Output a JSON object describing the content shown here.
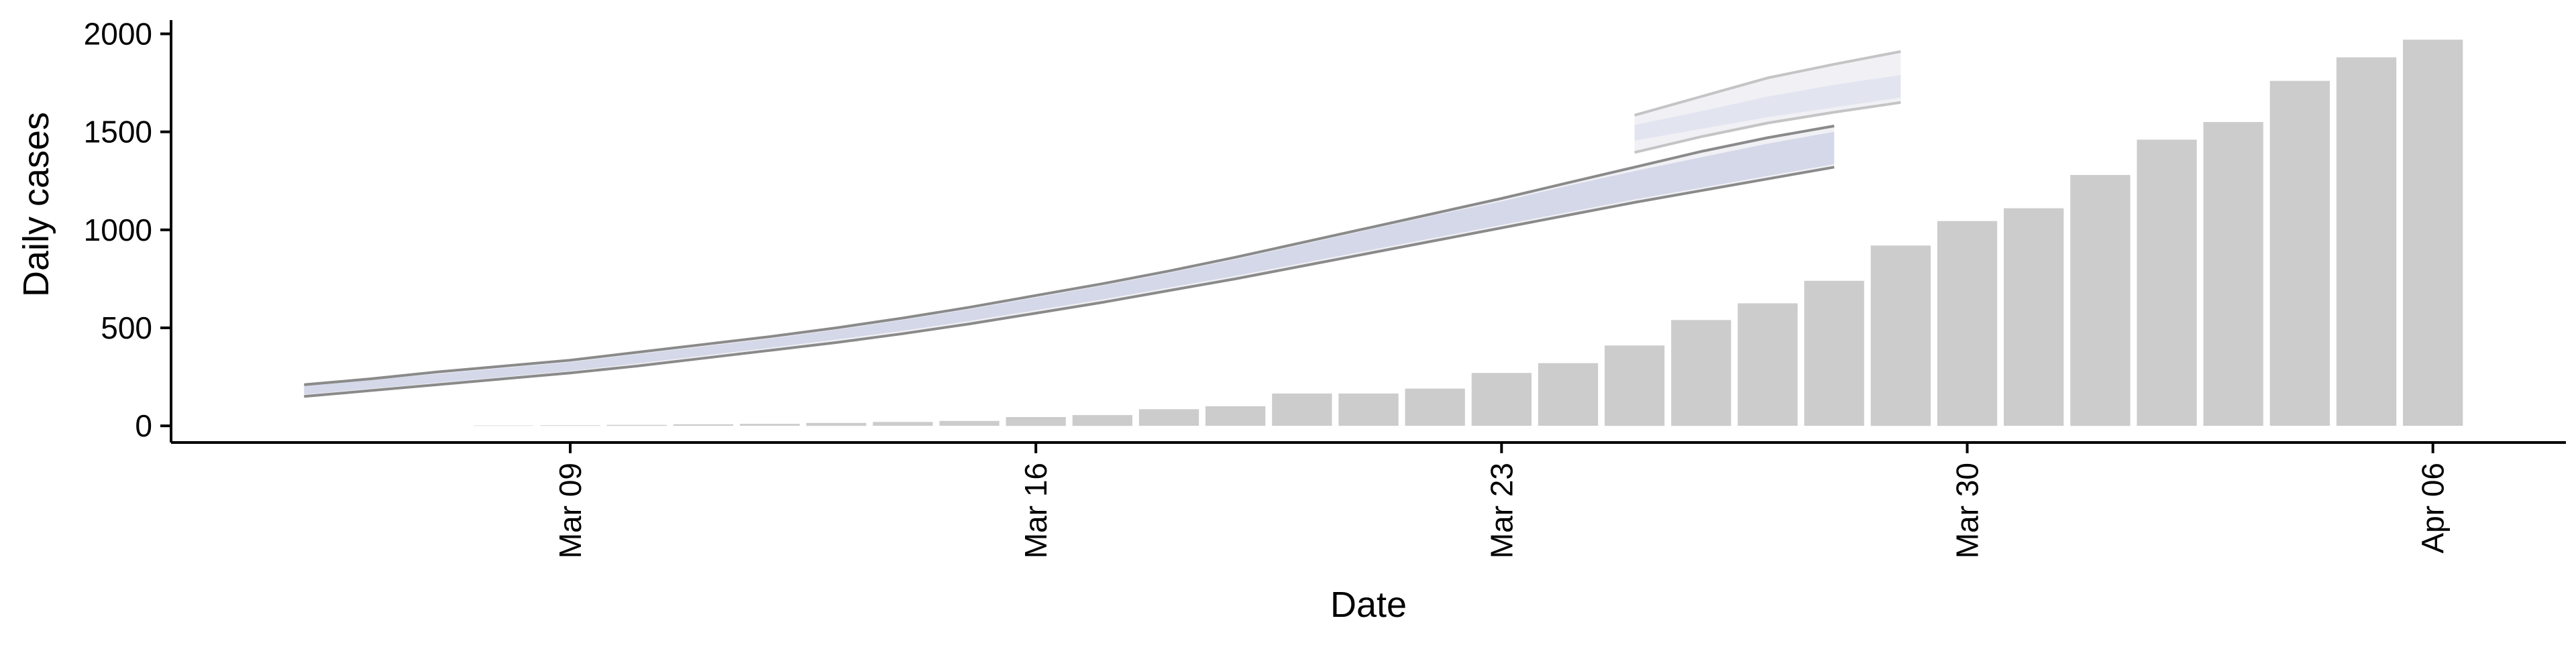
{
  "chart_data": {
    "type": "bar",
    "xlabel": "Date",
    "ylabel": "Daily cases",
    "ylim": [
      -85,
      2070
    ],
    "xlim": [
      "2020-03-03",
      "2020-04-08"
    ],
    "y_ticks": [
      0,
      500,
      1000,
      1500,
      2000
    ],
    "x_ticks": [
      {
        "date": "2020-03-09",
        "label": "Mar 09"
      },
      {
        "date": "2020-03-16",
        "label": "Mar 16"
      },
      {
        "date": "2020-03-23",
        "label": "Mar 23"
      },
      {
        "date": "2020-03-30",
        "label": "Mar 30"
      },
      {
        "date": "2020-04-06",
        "label": "Apr 06"
      }
    ],
    "grid": false,
    "legend": "none",
    "colors": {
      "bars": "#cccccc",
      "outer_band": "#f0f0f5",
      "inner_band": "#d4d8e8",
      "band_edge": "#8a8a8a"
    },
    "bars": {
      "dates": [
        "2020-03-08",
        "2020-03-09",
        "2020-03-10",
        "2020-03-11",
        "2020-03-12",
        "2020-03-13",
        "2020-03-14",
        "2020-03-15",
        "2020-03-16",
        "2020-03-17",
        "2020-03-18",
        "2020-03-19",
        "2020-03-20",
        "2020-03-21",
        "2020-03-22",
        "2020-03-23",
        "2020-03-24",
        "2020-03-25",
        "2020-03-26",
        "2020-03-27",
        "2020-03-28",
        "2020-03-29",
        "2020-03-30",
        "2020-03-31",
        "2020-04-01",
        "2020-04-02",
        "2020-04-03",
        "2020-04-04",
        "2020-04-05",
        "2020-04-06"
      ],
      "values": [
        2,
        3,
        5,
        8,
        10,
        15,
        20,
        25,
        45,
        55,
        85,
        100,
        165,
        165,
        190,
        270,
        320,
        410,
        540,
        625,
        740,
        920,
        1045,
        1110,
        1280,
        1460,
        1550,
        1760,
        1880,
        1970
      ]
    },
    "band": {
      "dates": [
        "2020-03-05",
        "2020-03-06",
        "2020-03-07",
        "2020-03-08",
        "2020-03-09",
        "2020-03-10",
        "2020-03-11",
        "2020-03-12",
        "2020-03-13",
        "2020-03-14",
        "2020-03-15",
        "2020-03-16",
        "2020-03-17",
        "2020-03-18",
        "2020-03-19",
        "2020-03-20",
        "2020-03-21",
        "2020-03-22",
        "2020-03-23",
        "2020-03-24",
        "2020-03-25",
        "2020-03-26",
        "2020-03-27",
        "2020-03-28"
      ],
      "outer_upper": [
        210,
        240,
        275,
        305,
        335,
        375,
        415,
        455,
        500,
        550,
        605,
        665,
        725,
        790,
        860,
        935,
        1010,
        1085,
        1160,
        1240,
        1320,
        1400,
        1470,
        1530
      ],
      "outer_lower": [
        150,
        180,
        210,
        240,
        270,
        305,
        345,
        385,
        425,
        470,
        520,
        575,
        630,
        690,
        750,
        815,
        880,
        945,
        1010,
        1075,
        1140,
        1200,
        1260,
        1320
      ],
      "inner_upper": [
        205,
        235,
        265,
        295,
        325,
        365,
        405,
        445,
        490,
        540,
        595,
        655,
        715,
        780,
        850,
        925,
        1000,
        1075,
        1145,
        1225,
        1300,
        1370,
        1440,
        1500
      ],
      "inner_lower": [
        160,
        190,
        220,
        250,
        280,
        318,
        358,
        398,
        440,
        485,
        535,
        590,
        645,
        705,
        765,
        830,
        895,
        960,
        1025,
        1090,
        1155,
        1215,
        1275,
        1335
      ]
    },
    "band_upper_tail": {
      "dates": [
        "2020-03-25",
        "2020-03-26",
        "2020-03-27",
        "2020-03-28",
        "2020-03-29"
      ],
      "outer_upper": [
        1585,
        1680,
        1775,
        1845,
        1910
      ],
      "inner_upper": [
        1535,
        1605,
        1680,
        1740,
        1790
      ],
      "inner_lower": [
        1455,
        1515,
        1575,
        1625,
        1675
      ],
      "outer_lower": [
        1395,
        1475,
        1545,
        1600,
        1650
      ]
    }
  }
}
